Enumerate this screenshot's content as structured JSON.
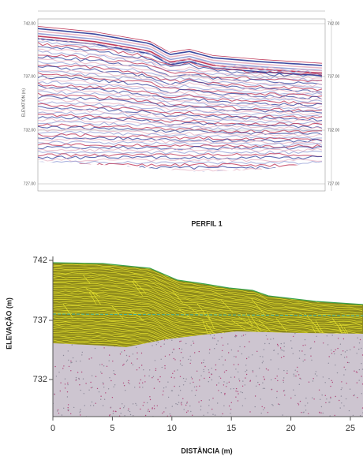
{
  "top_panel": {
    "axis_title": "ELEVATION (m)",
    "left_ticks": [
      "742.00",
      "737.00",
      "732.00",
      "727.00"
    ],
    "right_ticks": [
      "742.00",
      "737.00",
      "732.00",
      "727.00"
    ]
  },
  "caption": "PERFIL 1",
  "bottom_panel": {
    "y_label": "ELEVAÇÃO (m)",
    "x_label": "DISTÂNCIA (m)",
    "yticks": [
      "742",
      "737",
      "732"
    ],
    "xticks": [
      "0",
      "5",
      "10",
      "15",
      "20",
      "25"
    ]
  }
}
